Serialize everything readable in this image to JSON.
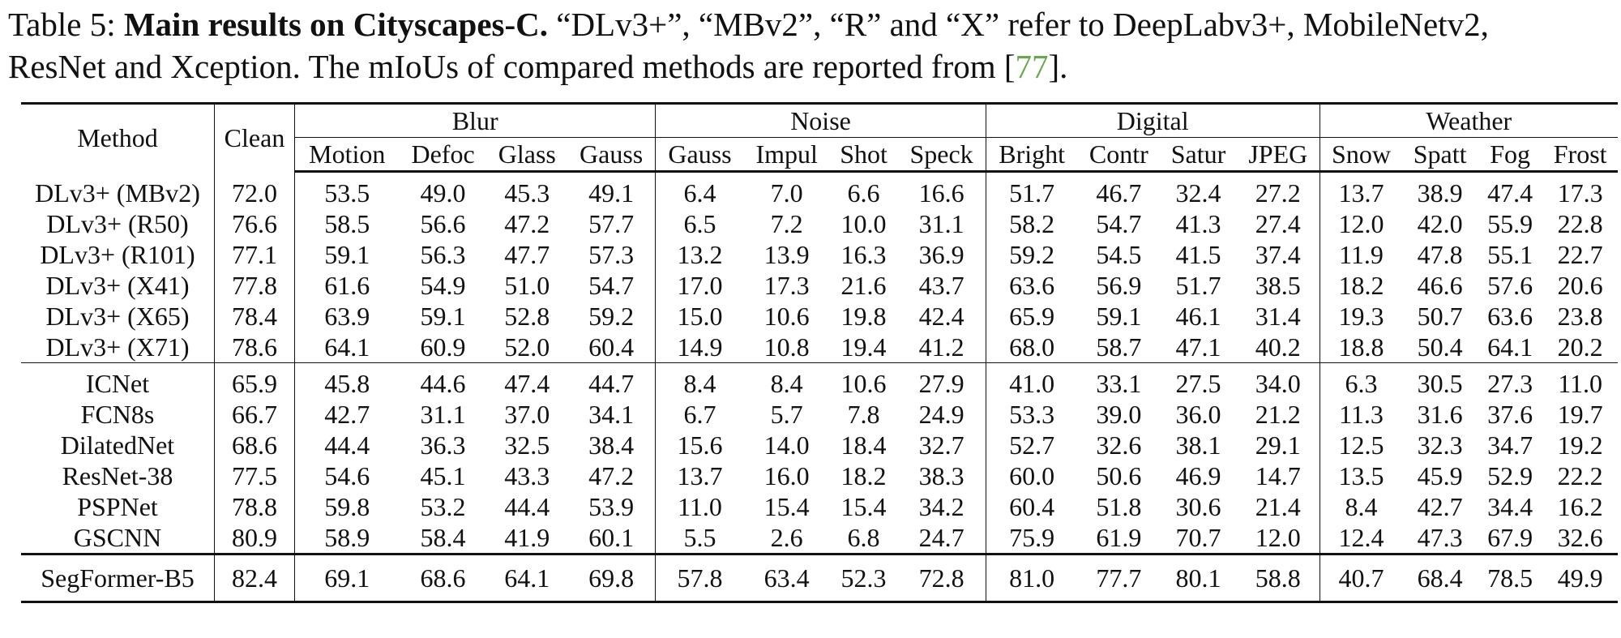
{
  "caption": {
    "label": "Table 5:",
    "title": "Main results on Cityscapes-C.",
    "text_line1": "“DLv3+”, “MBv2”, “R” and “X” refer to DeepLabv3+, MobileNetv2,",
    "text_line2_pre": "ResNet and Xception. The mIoUs of compared methods are reported from [",
    "citation": "77",
    "text_line2_post": "]."
  },
  "header": {
    "method": "Method",
    "clean": "Clean",
    "groups": [
      "Blur",
      "Noise",
      "Digital",
      "Weather"
    ],
    "columns": [
      "Motion",
      "Defoc",
      "Glass",
      "Gauss",
      "Gauss",
      "Impul",
      "Shot",
      "Speck",
      "Bright",
      "Contr",
      "Satur",
      "JPEG",
      "Snow",
      "Spatt",
      "Fog",
      "Frost"
    ]
  },
  "sections": [
    {
      "rows": [
        {
          "method": "DLv3+ (MBv2)",
          "values": [
            "72.0",
            "53.5",
            "49.0",
            "45.3",
            "49.1",
            "6.4",
            "7.0",
            "6.6",
            "16.6",
            "51.7",
            "46.7",
            "32.4",
            "27.2",
            "13.7",
            "38.9",
            "47.4",
            "17.3"
          ]
        },
        {
          "method": "DLv3+ (R50)",
          "values": [
            "76.6",
            "58.5",
            "56.6",
            "47.2",
            "57.7",
            "6.5",
            "7.2",
            "10.0",
            "31.1",
            "58.2",
            "54.7",
            "41.3",
            "27.4",
            "12.0",
            "42.0",
            "55.9",
            "22.8"
          ]
        },
        {
          "method": "DLv3+ (R101)",
          "values": [
            "77.1",
            "59.1",
            "56.3",
            "47.7",
            "57.3",
            "13.2",
            "13.9",
            "16.3",
            "36.9",
            "59.2",
            "54.5",
            "41.5",
            "37.4",
            "11.9",
            "47.8",
            "55.1",
            "22.7"
          ]
        },
        {
          "method": "DLv3+ (X41)",
          "values": [
            "77.8",
            "61.6",
            "54.9",
            "51.0",
            "54.7",
            "17.0",
            "17.3",
            "21.6",
            "43.7",
            "63.6",
            "56.9",
            "51.7",
            "38.5",
            "18.2",
            "46.6",
            "57.6",
            "20.6"
          ]
        },
        {
          "method": "DLv3+ (X65)",
          "values": [
            "78.4",
            "63.9",
            "59.1",
            "52.8",
            "59.2",
            "15.0",
            "10.6",
            "19.8",
            "42.4",
            "65.9",
            "59.1",
            "46.1",
            "31.4",
            "19.3",
            "50.7",
            "63.6",
            "23.8"
          ]
        },
        {
          "method": "DLv3+ (X71)",
          "values": [
            "78.6",
            "64.1",
            "60.9",
            "52.0",
            "60.4",
            "14.9",
            "10.8",
            "19.4",
            "41.2",
            "68.0",
            "58.7",
            "47.1",
            "40.2",
            "18.8",
            "50.4",
            "64.1",
            "20.2"
          ]
        }
      ]
    },
    {
      "rows": [
        {
          "method": "ICNet",
          "values": [
            "65.9",
            "45.8",
            "44.6",
            "47.4",
            "44.7",
            "8.4",
            "8.4",
            "10.6",
            "27.9",
            "41.0",
            "33.1",
            "27.5",
            "34.0",
            "6.3",
            "30.5",
            "27.3",
            "11.0"
          ]
        },
        {
          "method": "FCN8s",
          "values": [
            "66.7",
            "42.7",
            "31.1",
            "37.0",
            "34.1",
            "6.7",
            "5.7",
            "7.8",
            "24.9",
            "53.3",
            "39.0",
            "36.0",
            "21.2",
            "11.3",
            "31.6",
            "37.6",
            "19.7"
          ]
        },
        {
          "method": "DilatedNet",
          "values": [
            "68.6",
            "44.4",
            "36.3",
            "32.5",
            "38.4",
            "15.6",
            "14.0",
            "18.4",
            "32.7",
            "52.7",
            "32.6",
            "38.1",
            "29.1",
            "12.5",
            "32.3",
            "34.7",
            "19.2"
          ]
        },
        {
          "method": "ResNet-38",
          "values": [
            "77.5",
            "54.6",
            "45.1",
            "43.3",
            "47.2",
            "13.7",
            "16.0",
            "18.2",
            "38.3",
            "60.0",
            "50.6",
            "46.9",
            "14.7",
            "13.5",
            "45.9",
            "52.9",
            "22.2"
          ]
        },
        {
          "method": "PSPNet",
          "values": [
            "78.8",
            "59.8",
            "53.2",
            "44.4",
            "53.9",
            "11.0",
            "15.4",
            "15.4",
            "34.2",
            "60.4",
            "51.8",
            "30.6",
            "21.4",
            "8.4",
            "42.7",
            "34.4",
            "16.2"
          ]
        },
        {
          "method": "GSCNN",
          "values": [
            "80.9",
            "58.9",
            "58.4",
            "41.9",
            "60.1",
            "5.5",
            "2.6",
            "6.8",
            "24.7",
            "75.9",
            "61.9",
            "70.7",
            "12.0",
            "12.4",
            "47.3",
            "67.9",
            "32.6"
          ]
        }
      ]
    }
  ],
  "final": {
    "method": "SegFormer-B5",
    "values": [
      "82.4",
      "69.1",
      "68.6",
      "64.1",
      "69.8",
      "57.8",
      "63.4",
      "52.3",
      "72.8",
      "81.0",
      "77.7",
      "80.1",
      "58.8",
      "40.7",
      "68.4",
      "78.5",
      "49.9"
    ]
  }
}
